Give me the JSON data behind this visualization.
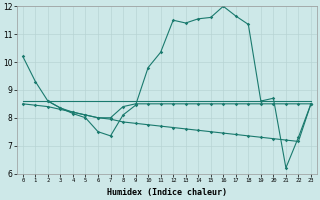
{
  "line1_x": [
    0,
    1,
    2,
    3,
    4,
    5,
    6,
    7,
    8,
    9,
    10,
    11,
    12,
    13,
    14,
    15,
    16,
    17,
    18,
    19,
    20,
    21,
    22,
    23
  ],
  "line1_y": [
    10.2,
    9.3,
    8.6,
    8.35,
    8.15,
    8.0,
    7.5,
    7.35,
    8.1,
    8.45,
    9.8,
    10.35,
    11.5,
    11.4,
    11.55,
    11.6,
    12.0,
    11.65,
    11.35,
    8.6,
    8.7,
    6.2,
    7.3,
    8.5
  ],
  "line2_x": [
    0,
    1,
    2,
    3,
    4,
    5,
    6,
    7,
    8,
    9,
    10,
    11,
    12,
    13,
    14,
    15,
    16,
    17,
    18,
    19,
    20,
    21,
    22,
    23
  ],
  "line2_y": [
    8.6,
    8.6,
    8.6,
    8.6,
    8.6,
    8.6,
    8.6,
    8.6,
    8.6,
    8.6,
    8.6,
    8.6,
    8.6,
    8.6,
    8.6,
    8.6,
    8.6,
    8.6,
    8.6,
    8.6,
    8.6,
    8.6,
    8.6,
    8.6
  ],
  "line3_x": [
    0,
    1,
    2,
    3,
    4,
    5,
    6,
    7,
    8,
    9,
    10,
    11,
    12,
    13,
    14,
    15,
    16,
    17,
    18,
    19,
    20,
    21,
    22,
    23
  ],
  "line3_y": [
    8.5,
    8.45,
    8.4,
    8.3,
    8.2,
    8.1,
    8.0,
    7.95,
    7.85,
    7.8,
    7.75,
    7.7,
    7.65,
    7.6,
    7.55,
    7.5,
    7.45,
    7.4,
    7.35,
    7.3,
    7.25,
    7.2,
    7.15,
    8.5
  ],
  "line4_x": [
    2,
    3,
    4,
    5,
    6,
    7,
    8,
    9,
    10,
    11,
    12,
    13,
    14,
    15,
    16,
    17,
    18,
    19,
    20,
    21,
    22,
    23
  ],
  "line4_y": [
    8.6,
    8.35,
    8.2,
    8.1,
    8.0,
    8.0,
    8.4,
    8.5,
    8.5,
    8.5,
    8.5,
    8.5,
    8.5,
    8.5,
    8.5,
    8.5,
    8.5,
    8.5,
    8.5,
    8.5,
    8.5,
    8.5
  ],
  "color": "#1a7a6e",
  "bg_color": "#cde8e8",
  "grid_color": "#b8d4d4",
  "xlabel": "Humidex (Indice chaleur)",
  "ylim": [
    6,
    12
  ],
  "xlim": [
    -0.5,
    23.5
  ],
  "yticks": [
    6,
    7,
    8,
    9,
    10,
    11,
    12
  ],
  "xticks": [
    0,
    1,
    2,
    3,
    4,
    5,
    6,
    7,
    8,
    9,
    10,
    11,
    12,
    13,
    14,
    15,
    16,
    17,
    18,
    19,
    20,
    21,
    22,
    23
  ]
}
